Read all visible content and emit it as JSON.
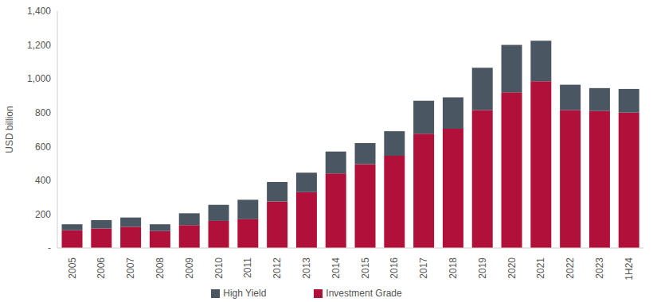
{
  "chart_data": {
    "type": "bar",
    "stacked": true,
    "y_label": "USD billion",
    "categories": [
      "2005",
      "2006",
      "2007",
      "2008",
      "2009",
      "2010",
      "2011",
      "2012",
      "2013",
      "2014",
      "2015",
      "2016",
      "2017",
      "2018",
      "2019",
      "2020",
      "2021",
      "2022",
      "2023",
      "1H24"
    ],
    "series": [
      {
        "name": "Investment Grade",
        "color": "#b0103a",
        "values": [
          105,
          115,
          125,
          100,
          135,
          160,
          170,
          275,
          330,
          440,
          495,
          545,
          675,
          705,
          815,
          920,
          985,
          815,
          810,
          800
        ]
      },
      {
        "name": "High Yield",
        "color": "#4a5662",
        "values": [
          35,
          50,
          55,
          40,
          70,
          95,
          115,
          115,
          115,
          130,
          125,
          145,
          195,
          185,
          250,
          280,
          240,
          150,
          135,
          140
        ]
      }
    ],
    "ylim": [
      0,
      1400
    ],
    "yticks": [
      {
        "value": 0,
        "label": "-"
      },
      200,
      400,
      600,
      800,
      {
        "value": 1000,
        "label": "1,000"
      },
      {
        "value": 1200,
        "label": "1,200"
      },
      {
        "value": 1400,
        "label": "1,400"
      }
    ],
    "grid": false,
    "legend": "bottom"
  }
}
